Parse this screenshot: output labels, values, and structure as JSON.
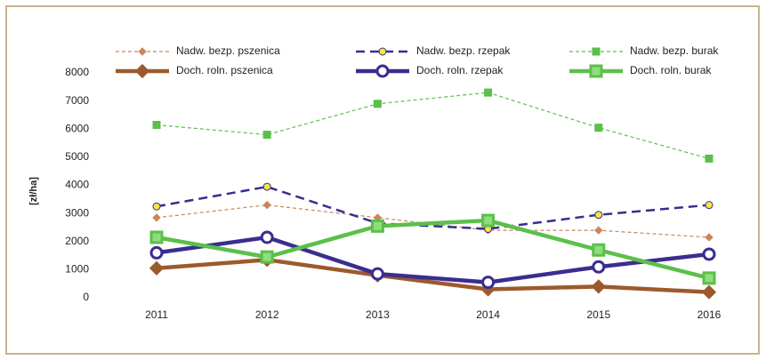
{
  "chart_data": {
    "type": "line",
    "y_label": "[zł/ha]",
    "categories": [
      "2011",
      "2012",
      "2013",
      "2014",
      "2015",
      "2016"
    ],
    "ylim": [
      0,
      8000
    ],
    "yticks": [
      0,
      1000,
      2000,
      3000,
      4000,
      5000,
      6000,
      7000,
      8000
    ],
    "series": [
      {
        "name": "Nadw. bezp. pszenica",
        "color": "#c8875a",
        "line_style": "dashed",
        "marker": "diamond",
        "marker_fill": "#c8875a",
        "values": [
          2850,
          3300,
          2850,
          2400,
          2400,
          2150
        ]
      },
      {
        "name": "Nadw. bezp. rzepak",
        "color": "#3a2d8f",
        "line_style": "dashed",
        "marker": "circle",
        "marker_fill": "#f5e642",
        "values": [
          3250,
          3950,
          2650,
          2450,
          2950,
          3300
        ]
      },
      {
        "name": "Nadw. bezp. burak",
        "color": "#5cbf4a",
        "line_style": "dashed",
        "marker": "square",
        "marker_fill": "#5cbf4a",
        "values": [
          6150,
          5800,
          6900,
          7300,
          6050,
          4950
        ]
      },
      {
        "name": "Doch. roln. pszenica",
        "color": "#9c5a2c",
        "line_style": "solid",
        "marker": "diamond",
        "marker_fill": "#9c5a2c",
        "values": [
          1050,
          1350,
          800,
          300,
          400,
          200
        ]
      },
      {
        "name": "Doch. roln. rzepak",
        "color": "#3a2d8f",
        "line_style": "solid",
        "marker": "circle",
        "marker_fill": "#ffffff",
        "values": [
          1600,
          2150,
          850,
          550,
          1100,
          1550
        ]
      },
      {
        "name": "Doch. roln. burak",
        "color": "#5cbf4a",
        "line_style": "solid",
        "marker": "square",
        "marker_fill": "#8fdc7e",
        "values": [
          2150,
          1450,
          2550,
          2750,
          1700,
          700
        ]
      }
    ]
  }
}
